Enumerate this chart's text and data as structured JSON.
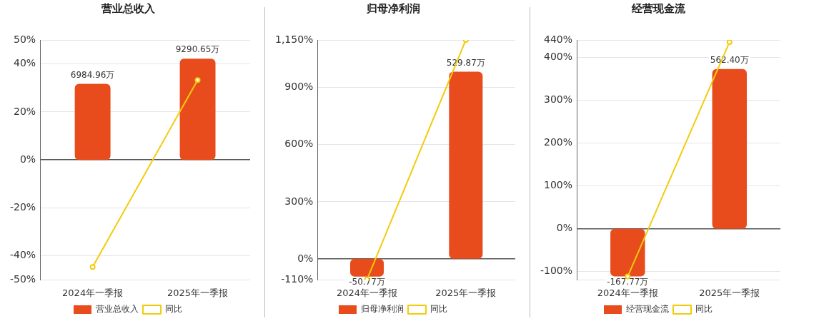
{
  "chart_data": [
    {
      "type": "bar",
      "title": "营业总收入",
      "categories": [
        "2024年一季报",
        "2025年一季报"
      ],
      "series": [
        {
          "name": "营业总收入",
          "color": "#e84b1c",
          "axis": "y2",
          "values": [
            6984.96,
            9290.65
          ],
          "value_labels": [
            "6984.96万",
            "9290.65万"
          ]
        },
        {
          "name": "同比",
          "type": "line",
          "color": "#f2cc0c",
          "values": [
            -44.6,
            33.3
          ]
        }
      ],
      "ylim": [
        -50,
        50
      ],
      "yticks": [
        {
          "value": -50,
          "label": "-50%"
        },
        {
          "value": -40,
          "label": "-40%"
        },
        {
          "value": -20,
          "label": "-20%"
        },
        {
          "value": 0,
          "label": "0%"
        },
        {
          "value": 20,
          "label": "20%"
        },
        {
          "value": 40,
          "label": "40%"
        },
        {
          "value": 50,
          "label": "50%"
        }
      ],
      "y2lim": [
        -11000,
        11000
      ],
      "grid": "y",
      "legend": "bottom",
      "marker": "circle"
    },
    {
      "type": "bar",
      "title": "归母净利润",
      "categories": [
        "2024年一季报",
        "2025年一季报"
      ],
      "series": [
        {
          "name": "归母净利润",
          "color": "#e84b1c",
          "axis": "y2",
          "values": [
            -50.77,
            529.87
          ],
          "value_labels": [
            "-50.77万",
            "529.87万"
          ]
        },
        {
          "name": "同比",
          "type": "line",
          "color": "#f2cc0c",
          "values": [
            -108,
            1150
          ]
        }
      ],
      "ylim": [
        -110,
        1150
      ],
      "yticks": [
        {
          "value": -110,
          "label": "-110%"
        },
        {
          "value": 0,
          "label": "0%"
        },
        {
          "value": 300,
          "label": "300%"
        },
        {
          "value": 600,
          "label": "600%"
        },
        {
          "value": 900,
          "label": "900%"
        },
        {
          "value": 1150,
          "label": "1,150%"
        }
      ],
      "y2lim": [
        -60,
        620
      ],
      "grid": "y",
      "legend": "bottom",
      "marker": "circle"
    },
    {
      "type": "bar",
      "title": "经营现金流",
      "categories": [
        "2024年一季报",
        "2025年一季报"
      ],
      "series": [
        {
          "name": "经营现金流",
          "color": "#e84b1c",
          "axis": "y2",
          "values": [
            -167.77,
            562.4
          ],
          "value_labels": [
            "-167.77万",
            "562.40万"
          ]
        },
        {
          "name": "同比",
          "type": "line",
          "color": "#f2cc0c",
          "values": [
            -112,
            435
          ]
        }
      ],
      "ylim": [
        -120,
        440
      ],
      "yticks": [
        {
          "value": -120,
          "label": null
        },
        {
          "value": -100,
          "label": "-100%"
        },
        {
          "value": 0,
          "label": "0%"
        },
        {
          "value": 100,
          "label": "100%"
        },
        {
          "value": 200,
          "label": "200%"
        },
        {
          "value": 300,
          "label": "300%"
        },
        {
          "value": 400,
          "label": "400%"
        },
        {
          "value": 440,
          "label": "440%"
        }
      ],
      "y2lim": [
        -180,
        665
      ],
      "grid": "y",
      "legend": "bottom",
      "marker": "circle"
    }
  ]
}
